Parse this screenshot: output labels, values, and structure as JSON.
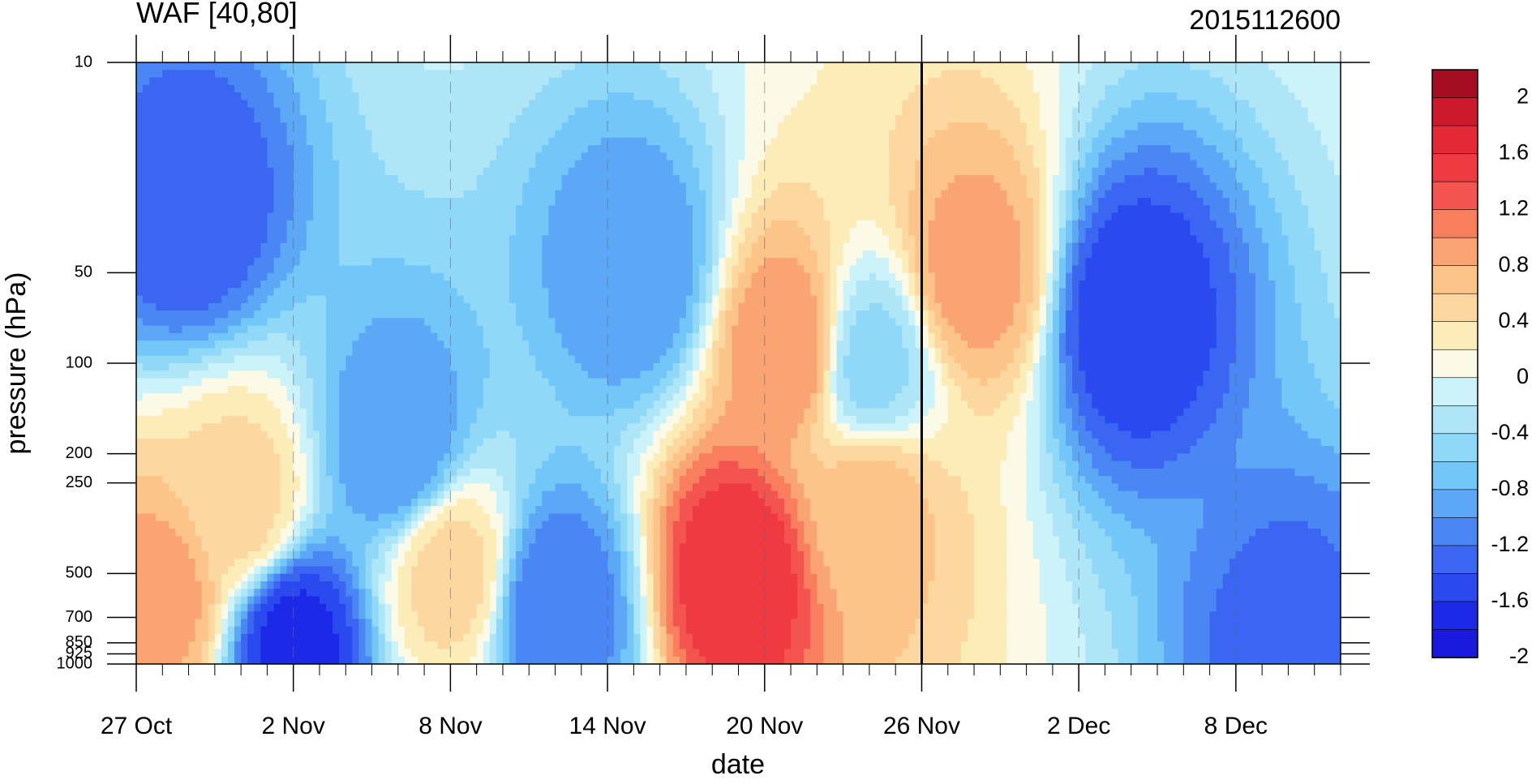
{
  "chart_data": {
    "type": "heatmap",
    "title": "WAF [40,80]",
    "subtitle": "2015112600",
    "xlabel": "date",
    "ylabel": "pressure (hPa)",
    "x_ticks": [
      "27 Oct",
      "2 Nov",
      "8 Nov",
      "14 Nov",
      "20 Nov",
      "26 Nov",
      "2 Dec",
      "8 Dec"
    ],
    "x_range": [
      "2015-10-27",
      "2015-12-12"
    ],
    "reference_date": "26 Nov",
    "y_ticks": [
      10,
      50,
      100,
      200,
      250,
      500,
      700,
      850,
      925,
      1000
    ],
    "y_scale": "log",
    "y_range": [
      1000,
      10
    ],
    "colorbar": {
      "labels": [
        "2",
        "1.6",
        "1.2",
        "0.8",
        "0.4",
        "0",
        "-0.4",
        "-0.8",
        "-1.2",
        "-1.6",
        "-2"
      ],
      "levels": [
        -2.0,
        -1.8,
        -1.6,
        -1.4,
        -1.2,
        -1.0,
        -0.8,
        -0.6,
        -0.4,
        -0.2,
        0.0,
        0.2,
        0.4,
        0.6,
        0.8,
        1.0,
        1.2,
        1.4,
        1.6,
        1.8,
        2.0
      ],
      "colors": [
        "#1a1adc",
        "#1c2ae8",
        "#2a4af0",
        "#3a66f2",
        "#4a86f4",
        "#5ca8f6",
        "#72c6f8",
        "#90d8f8",
        "#aee6f8",
        "#ccf2fa",
        "#fafae6",
        "#fcecb8",
        "#fcd8a0",
        "#fcc488",
        "#faa474",
        "#f87e5e",
        "#f45450",
        "#ee3a40",
        "#e42836",
        "#cc1a2c",
        "#a40c22"
      ]
    },
    "features": [
      {
        "date": "2015-10-29",
        "pressure": 30,
        "value": -1.5
      },
      {
        "date": "2015-10-31",
        "pressure": 300,
        "value": 0.4
      },
      {
        "date": "2015-10-28",
        "pressure": 600,
        "value": 0.8
      },
      {
        "date": "2015-11-02",
        "pressure": 850,
        "value": -1.8
      },
      {
        "date": "2015-11-06",
        "pressure": 190,
        "value": -1.1
      },
      {
        "date": "2015-11-08",
        "pressure": 500,
        "value": 0.4
      },
      {
        "date": "2015-11-12",
        "pressure": 650,
        "value": -1.3
      },
      {
        "date": "2015-11-15",
        "pressure": 50,
        "value": -1.1
      },
      {
        "date": "2015-11-19",
        "pressure": 500,
        "value": 1.5
      },
      {
        "date": "2015-11-21",
        "pressure": 90,
        "value": 0.9
      },
      {
        "date": "2015-11-24",
        "pressure": 100,
        "value": -0.6
      },
      {
        "date": "2015-11-24",
        "pressure": 300,
        "value": 0.6
      },
      {
        "date": "2015-11-28",
        "pressure": 50,
        "value": 0.8
      },
      {
        "date": "2015-12-04",
        "pressure": 70,
        "value": -1.7
      },
      {
        "date": "2015-12-10",
        "pressure": 850,
        "value": -1.4
      }
    ]
  }
}
